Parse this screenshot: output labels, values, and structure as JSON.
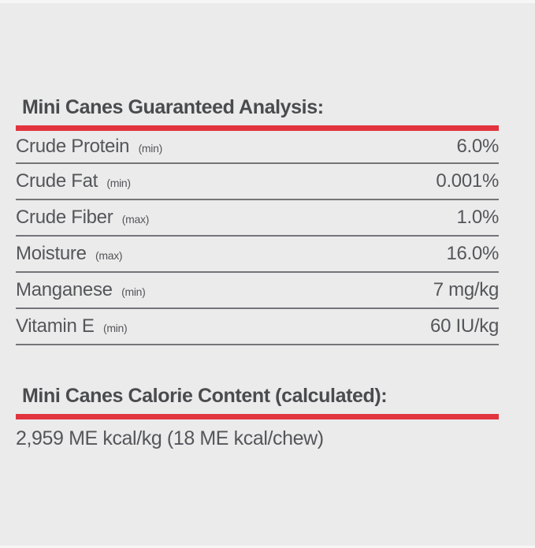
{
  "page": {
    "background_color": "#ebebeb",
    "accent_color": "#e2343f",
    "text_color": "#55565a",
    "heading_color": "#4a4b4e"
  },
  "guaranteed_analysis": {
    "title": "Mini Canes Guaranteed Analysis:",
    "rows": [
      {
        "label": "Crude Protein",
        "qualifier": "(min)",
        "value": "6.0%"
      },
      {
        "label": "Crude Fat",
        "qualifier": "(min)",
        "value": "0.001%"
      },
      {
        "label": "Crude Fiber",
        "qualifier": "(max)",
        "value": "1.0%"
      },
      {
        "label": "Moisture",
        "qualifier": "(max)",
        "value": "16.0%"
      },
      {
        "label": "Manganese",
        "qualifier": "(min)",
        "value": "7 mg/kg"
      },
      {
        "label": "Vitamin E",
        "qualifier": "(min)",
        "value": "60 IU/kg"
      }
    ]
  },
  "calorie_content": {
    "title": "Mini Canes Calorie Content (calculated):",
    "value": "2,959 ME kcal/kg (18 ME kcal/chew)"
  }
}
